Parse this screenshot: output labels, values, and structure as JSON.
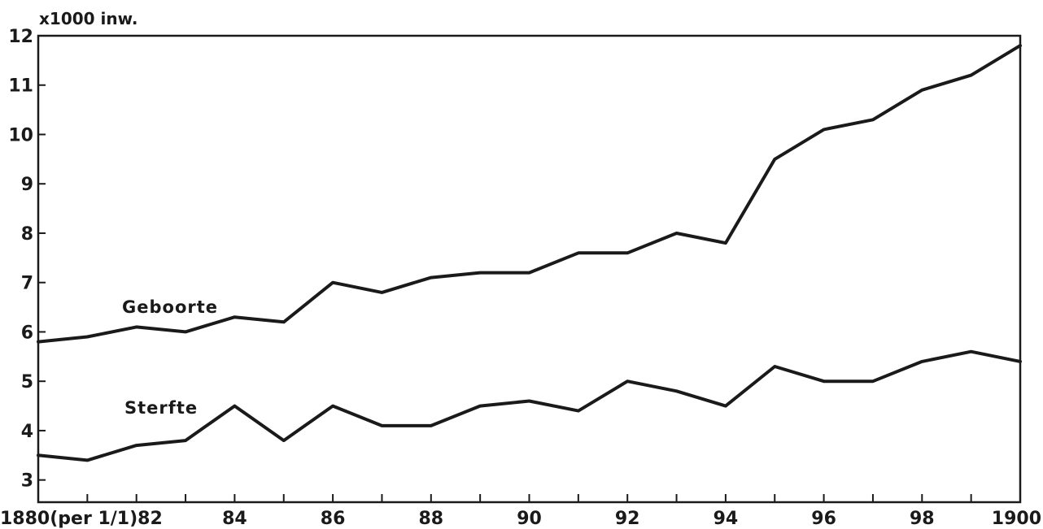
{
  "chart_data": {
    "type": "line",
    "unit_label": "x1000 inw.",
    "x": [
      1880,
      1881,
      1882,
      1883,
      1884,
      1885,
      1886,
      1887,
      1888,
      1889,
      1890,
      1891,
      1892,
      1893,
      1894,
      1895,
      1896,
      1897,
      1898,
      1899,
      1900
    ],
    "x_tick_labels": [
      {
        "x": 1880,
        "label": "1880(per 1/1)82"
      },
      {
        "x": 1884,
        "label": "84"
      },
      {
        "x": 1886,
        "label": "86"
      },
      {
        "x": 1888,
        "label": "88"
      },
      {
        "x": 1890,
        "label": "90"
      },
      {
        "x": 1892,
        "label": "92"
      },
      {
        "x": 1894,
        "label": "94"
      },
      {
        "x": 1896,
        "label": "96"
      },
      {
        "x": 1898,
        "label": "98"
      },
      {
        "x": 1900,
        "label": "1900"
      }
    ],
    "y_ticks": [
      3,
      4,
      5,
      6,
      7,
      8,
      9,
      10,
      11,
      12
    ],
    "xlim": [
      1880,
      1900
    ],
    "ylim": [
      2.55,
      12
    ],
    "grid": false,
    "series": [
      {
        "name": "Geboorte",
        "values": [
          5.8,
          5.9,
          6.1,
          6.0,
          6.3,
          6.2,
          7.0,
          6.8,
          7.1,
          7.2,
          7.2,
          7.6,
          7.6,
          8.0,
          7.8,
          9.5,
          10.1,
          10.3,
          10.9,
          11.2,
          11.8
        ]
      },
      {
        "name": "Sterfte",
        "values": [
          3.5,
          3.4,
          3.7,
          3.8,
          4.5,
          3.8,
          4.5,
          4.1,
          4.1,
          4.5,
          4.6,
          4.4,
          5.0,
          4.8,
          4.5,
          5.3,
          5.0,
          5.0,
          5.4,
          5.6,
          5.4
        ]
      }
    ]
  }
}
